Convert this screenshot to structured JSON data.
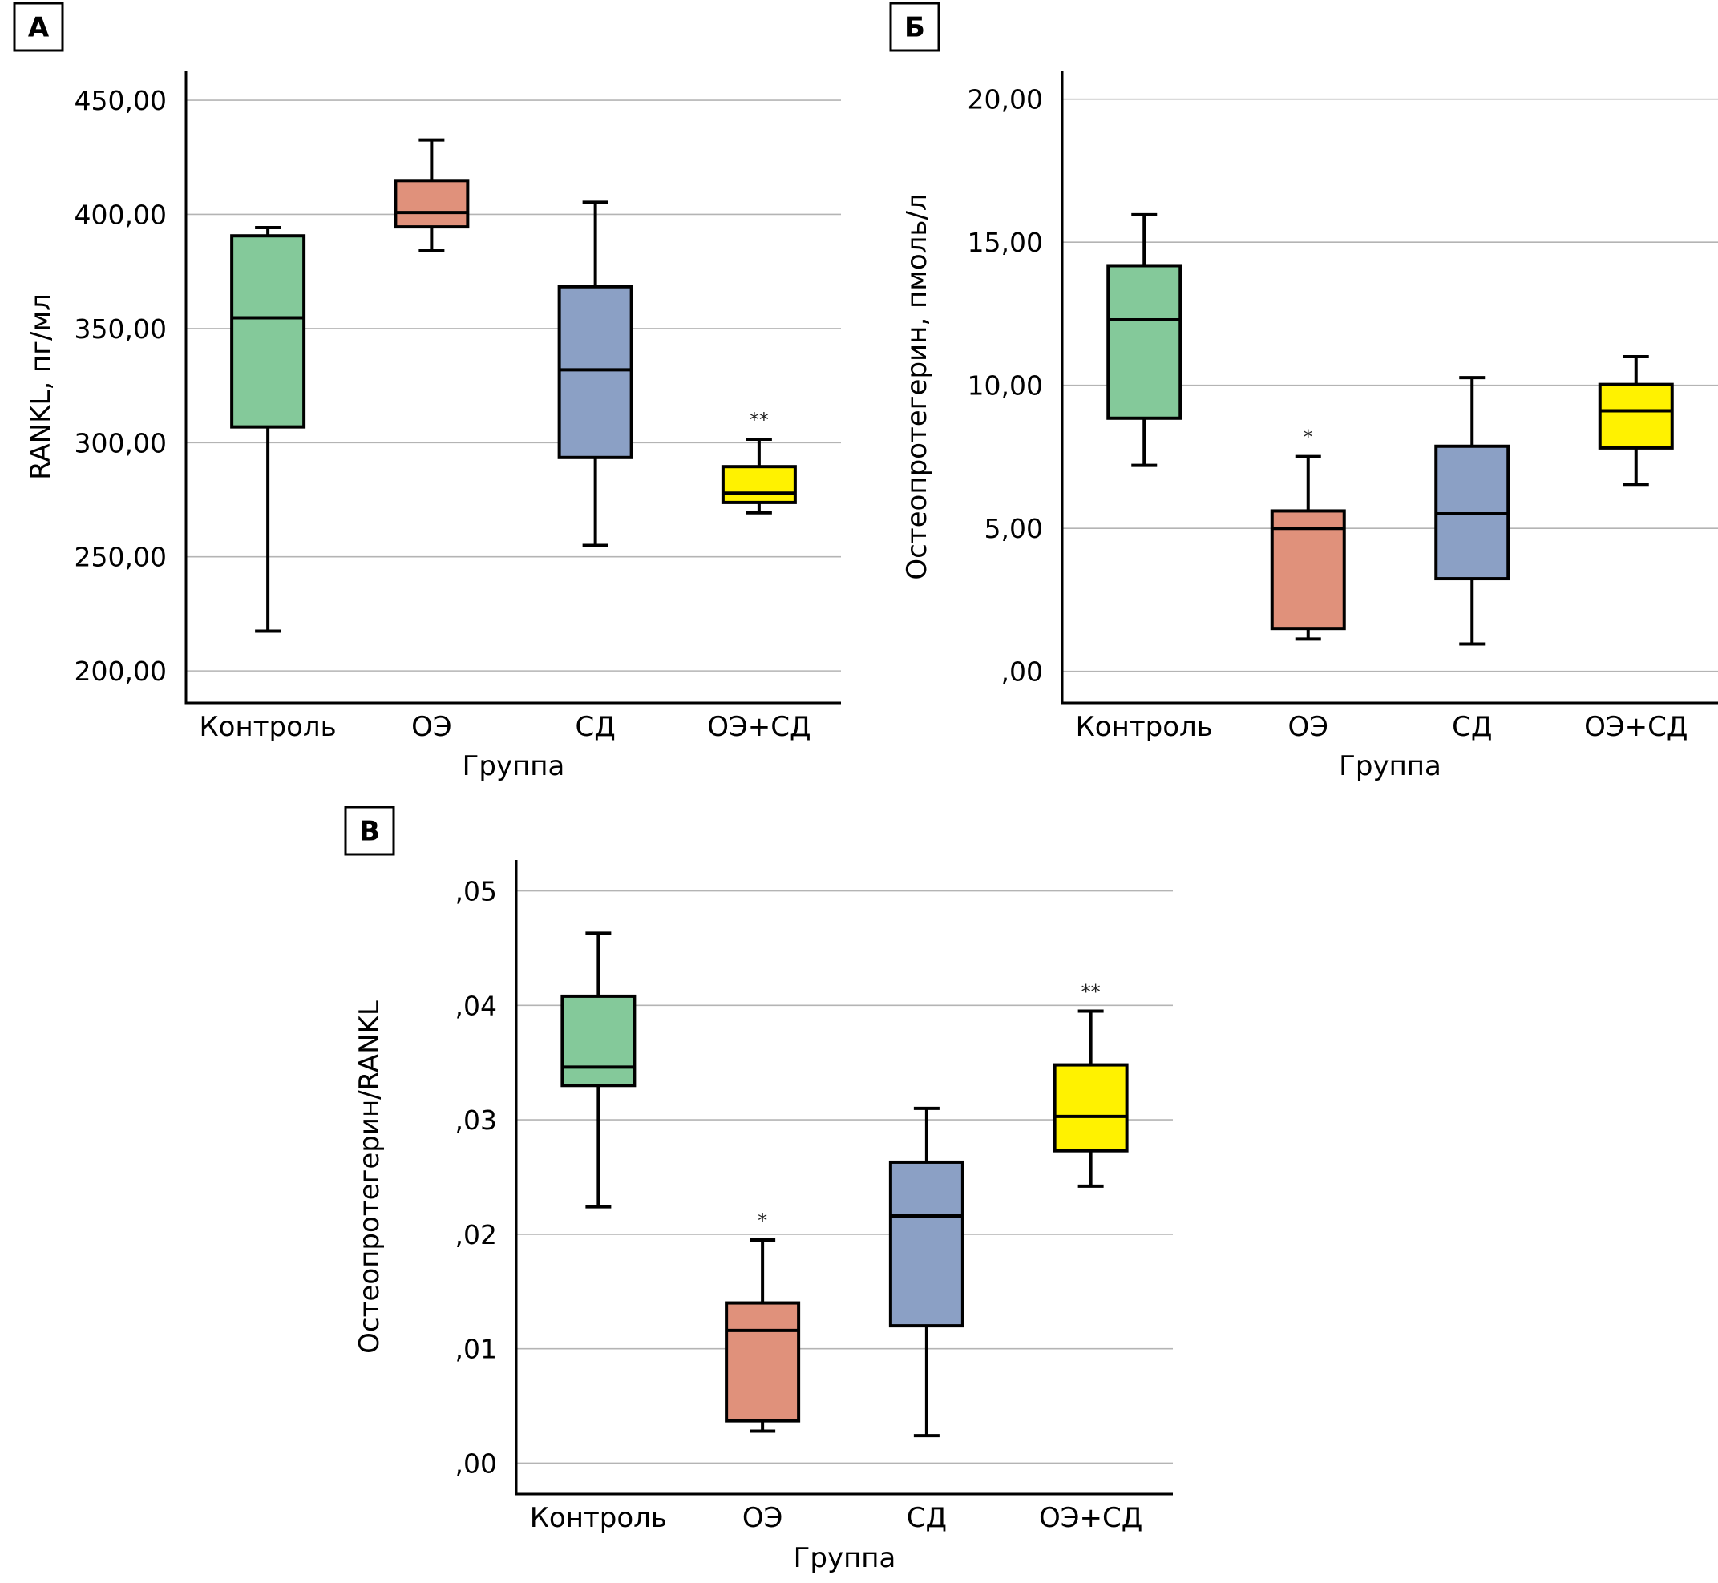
{
  "colors": {
    "Контроль": "#84C99A",
    "ОЭ": "#E0917B",
    "СД": "#8BA0C5",
    "ОЭ+СД": "#FFF200"
  },
  "chart_data": [
    {
      "id": "A",
      "type": "boxplot",
      "panel_label": "А",
      "title": "",
      "xlabel": "Группа",
      "ylabel": "RANKL, пг/мл",
      "ylim": [
        186,
        463
      ],
      "yticks": [
        200,
        250,
        300,
        350,
        400,
        450
      ],
      "ytick_labels": [
        "200,00",
        "250,00",
        "300,00",
        "350,00",
        "400,00",
        "450,00"
      ],
      "grid": true,
      "categories": [
        "Контроль",
        "ОЭ",
        "СД",
        "ОЭ+СД"
      ],
      "series": [
        {
          "name": "Контроль",
          "min": 217.4,
          "q1": 306.9,
          "median": 354.7,
          "q3": 390.6,
          "max": 394.2,
          "annotation": ""
        },
        {
          "name": "ОЭ",
          "min": 384.0,
          "q1": 394.5,
          "median": 400.8,
          "q3": 414.8,
          "max": 432.6,
          "annotation": ""
        },
        {
          "name": "СД",
          "min": 255.0,
          "q1": 293.5,
          "median": 331.9,
          "q3": 368.3,
          "max": 405.3,
          "annotation": ""
        },
        {
          "name": "ОЭ+СД",
          "min": 269.3,
          "q1": 273.8,
          "median": 277.9,
          "q3": 289.5,
          "max": 301.5,
          "annotation": "**"
        }
      ]
    },
    {
      "id": "B",
      "type": "boxplot",
      "panel_label": "Б",
      "title": "",
      "xlabel": "Группа",
      "ylabel": "Остеопротегерин, пмоль/л",
      "ylim": [
        -1.1,
        21.0
      ],
      "yticks": [
        0,
        5,
        10,
        15,
        20
      ],
      "ytick_labels": [
        ",00",
        "5,00",
        "10,00",
        "15,00",
        "20,00"
      ],
      "grid": true,
      "categories": [
        "Контроль",
        "ОЭ",
        "СД",
        "ОЭ+СД"
      ],
      "series": [
        {
          "name": "Контроль",
          "min": 7.2,
          "q1": 8.85,
          "median": 12.29,
          "q3": 14.18,
          "max": 15.96,
          "annotation": ""
        },
        {
          "name": "ОЭ",
          "min": 1.13,
          "q1": 1.5,
          "median": 5.0,
          "q3": 5.61,
          "max": 7.51,
          "annotation": "*"
        },
        {
          "name": "СД",
          "min": 0.96,
          "q1": 3.24,
          "median": 5.51,
          "q3": 7.87,
          "max": 10.27,
          "annotation": ""
        },
        {
          "name": "ОЭ+СД",
          "min": 6.54,
          "q1": 7.81,
          "median": 9.11,
          "q3": 10.03,
          "max": 11.0,
          "annotation": ""
        }
      ]
    },
    {
      "id": "C",
      "type": "boxplot",
      "panel_label": "В",
      "title": "",
      "xlabel": "Группа",
      "ylabel": "Остеопротегерин/RANKL",
      "ylim": [
        -0.0027,
        0.0527
      ],
      "yticks": [
        0,
        0.01,
        0.02,
        0.03,
        0.04,
        0.05
      ],
      "ytick_labels": [
        ",00",
        ",01",
        ",02",
        ",03",
        ",04",
        ",05"
      ],
      "grid": true,
      "categories": [
        "Контроль",
        "ОЭ",
        "СД",
        "ОЭ+СД"
      ],
      "series": [
        {
          "name": "Контроль",
          "min": 0.0224,
          "q1": 0.033,
          "median": 0.0346,
          "q3": 0.0408,
          "max": 0.0463,
          "annotation": ""
        },
        {
          "name": "ОЭ",
          "min": 0.0028,
          "q1": 0.0037,
          "median": 0.0116,
          "q3": 0.014,
          "max": 0.0195,
          "annotation": "*"
        },
        {
          "name": "СД",
          "min": 0.0024,
          "q1": 0.012,
          "median": 0.0216,
          "q3": 0.0263,
          "max": 0.031,
          "annotation": ""
        },
        {
          "name": "ОЭ+СД",
          "min": 0.0242,
          "q1": 0.0273,
          "median": 0.0303,
          "q3": 0.0348,
          "max": 0.0395,
          "annotation": "**"
        }
      ]
    }
  ]
}
